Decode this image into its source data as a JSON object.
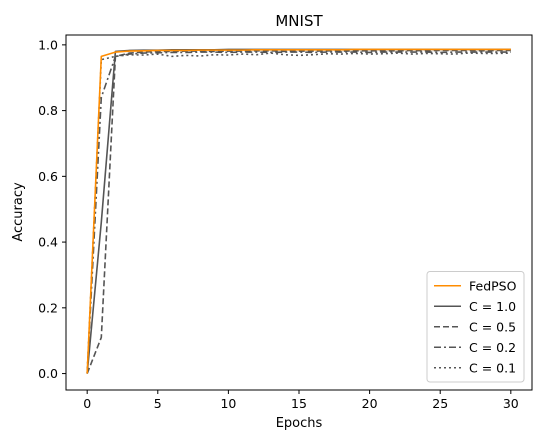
{
  "chart_data": {
    "type": "line",
    "title": "MNIST",
    "xlabel": "Epochs",
    "ylabel": "Accuracy",
    "xlim": [
      -1.5,
      31.5
    ],
    "ylim": [
      -0.05,
      1.03
    ],
    "xticks": [
      0,
      5,
      10,
      15,
      20,
      25,
      30
    ],
    "yticks": [
      0.0,
      0.2,
      0.4,
      0.6,
      0.8,
      1.0
    ],
    "xtick_labels": [
      "0",
      "5",
      "10",
      "15",
      "20",
      "25",
      "30"
    ],
    "ytick_labels": [
      "0.0",
      "0.2",
      "0.4",
      "0.6",
      "0.8",
      "1.0"
    ],
    "grid": false,
    "legend_position": "lower-right",
    "x": [
      0,
      1,
      2,
      3,
      4,
      5,
      6,
      7,
      8,
      9,
      10,
      11,
      12,
      13,
      14,
      15,
      16,
      17,
      18,
      19,
      20,
      21,
      22,
      23,
      24,
      25,
      26,
      27,
      28,
      29,
      30
    ],
    "series": [
      {
        "name": "FedPSO",
        "color": "#ff8c00",
        "dash": "solid",
        "values": [
          0.0,
          0.965,
          0.978,
          0.981,
          0.982,
          0.983,
          0.983,
          0.983,
          0.984,
          0.984,
          0.984,
          0.984,
          0.985,
          0.985,
          0.985,
          0.985,
          0.985,
          0.985,
          0.985,
          0.986,
          0.986,
          0.986,
          0.986,
          0.986,
          0.986,
          0.986,
          0.986,
          0.986,
          0.986,
          0.986,
          0.986
        ]
      },
      {
        "name": "C = 1.0",
        "color": "#555555",
        "dash": "solid",
        "values": [
          0.0,
          0.46,
          0.98,
          0.983,
          0.984,
          0.984,
          0.985,
          0.985,
          0.985,
          0.985,
          0.986,
          0.986,
          0.986,
          0.986,
          0.986,
          0.986,
          0.986,
          0.986,
          0.986,
          0.986,
          0.986,
          0.986,
          0.986,
          0.986,
          0.986,
          0.986,
          0.986,
          0.986,
          0.986,
          0.986,
          0.986
        ]
      },
      {
        "name": "C = 0.5",
        "color": "#555555",
        "dash": "dashed",
        "values": [
          0.0,
          0.11,
          0.965,
          0.975,
          0.978,
          0.98,
          0.98,
          0.981,
          0.981,
          0.98,
          0.981,
          0.981,
          0.982,
          0.982,
          0.98,
          0.981,
          0.981,
          0.982,
          0.981,
          0.982,
          0.982,
          0.982,
          0.982,
          0.983,
          0.982,
          0.983,
          0.983,
          0.983,
          0.982,
          0.983,
          0.983
        ]
      },
      {
        "name": "C = 0.2",
        "color": "#555555",
        "dash": "dashdot",
        "values": [
          0.0,
          0.84,
          0.965,
          0.972,
          0.975,
          0.976,
          0.977,
          0.977,
          0.978,
          0.978,
          0.977,
          0.978,
          0.978,
          0.977,
          0.978,
          0.978,
          0.977,
          0.978,
          0.978,
          0.978,
          0.977,
          0.978,
          0.978,
          0.978,
          0.978,
          0.977,
          0.978,
          0.978,
          0.978,
          0.978,
          0.978
        ]
      },
      {
        "name": "C = 0.1",
        "color": "#555555",
        "dash": "dotted",
        "values": [
          0.0,
          0.955,
          0.965,
          0.97,
          0.969,
          0.972,
          0.965,
          0.968,
          0.966,
          0.97,
          0.969,
          0.972,
          0.97,
          0.975,
          0.97,
          0.968,
          0.97,
          0.973,
          0.972,
          0.974,
          0.972,
          0.973,
          0.975,
          0.972,
          0.974,
          0.973,
          0.972,
          0.975,
          0.974,
          0.974,
          0.975
        ]
      }
    ]
  }
}
